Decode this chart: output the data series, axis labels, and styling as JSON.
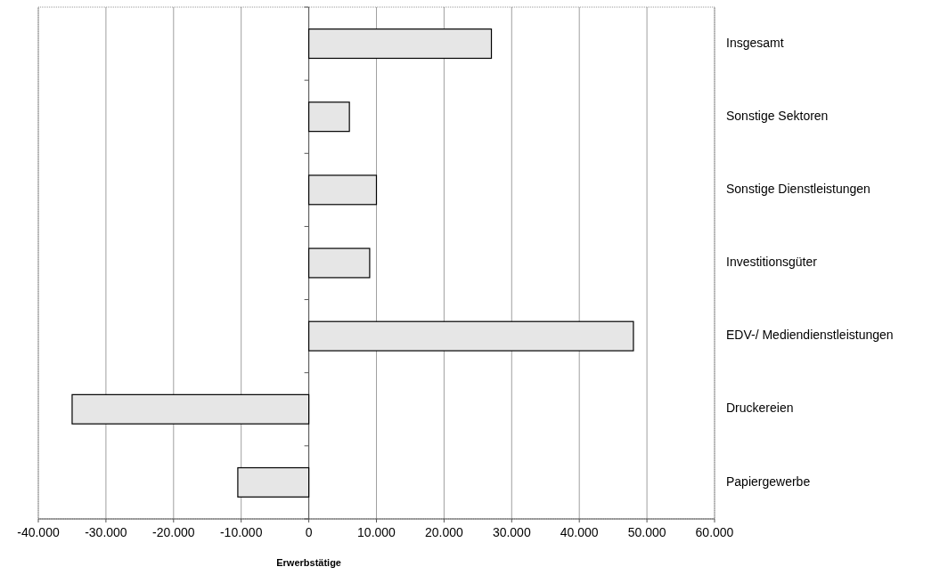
{
  "chart_data": {
    "type": "bar",
    "orientation": "horizontal",
    "xlabel": "Erwerbstätige",
    "categories": [
      "Insgesamt",
      "Sonstige Sektoren",
      "Sonstige Dienstleistungen",
      "Investitionsgüter",
      "EDV-/ Mediendienstleistungen",
      "Druckereien",
      "Papiergewerbe"
    ],
    "values": [
      27000,
      6000,
      10000,
      9000,
      48000,
      -35000,
      -10500
    ],
    "color": "#e6e6e6",
    "xlim": [
      -40000,
      60000
    ],
    "xticks": [
      {
        "value": -40000,
        "label": "-40.000"
      },
      {
        "value": -30000,
        "label": "-30.000"
      },
      {
        "value": -20000,
        "label": "-20.000"
      },
      {
        "value": -10000,
        "label": "-10.000"
      },
      0,
      {
        "value": 10000,
        "label": "10.000"
      },
      {
        "value": 20000,
        "label": "20.000"
      },
      {
        "value": 30000,
        "label": "30.000"
      },
      {
        "value": 40000,
        "label": "40.000"
      },
      {
        "value": 50000,
        "label": "50.000"
      },
      {
        "value": 60000,
        "label": "60.000"
      }
    ],
    "grid": "x"
  }
}
